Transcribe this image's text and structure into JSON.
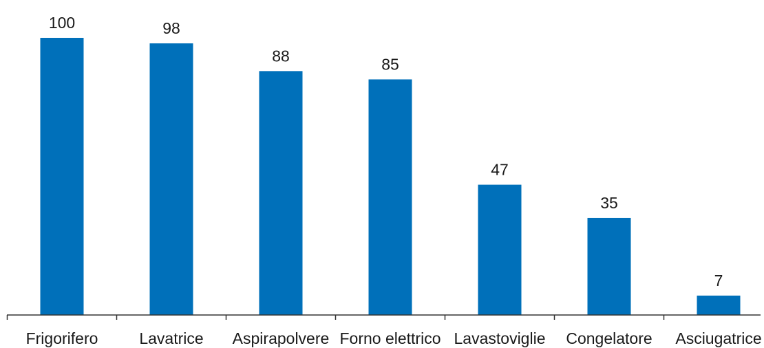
{
  "chart_data": {
    "type": "bar",
    "categories": [
      "Frigorifero",
      "Lavatrice",
      "Aspirapolvere",
      "Forno elettrico",
      "Lavastoviglie",
      "Congelatore",
      "Asciugatrice"
    ],
    "values": [
      100,
      98,
      88,
      85,
      47,
      35,
      7
    ],
    "data_labels": [
      "100",
      "98",
      "88",
      "85",
      "47",
      "35",
      "7"
    ],
    "title": "",
    "xlabel": "",
    "ylabel": "",
    "ylim": [
      0,
      100
    ],
    "grid": false,
    "legend": "none",
    "bar_color": "#0070BA"
  }
}
